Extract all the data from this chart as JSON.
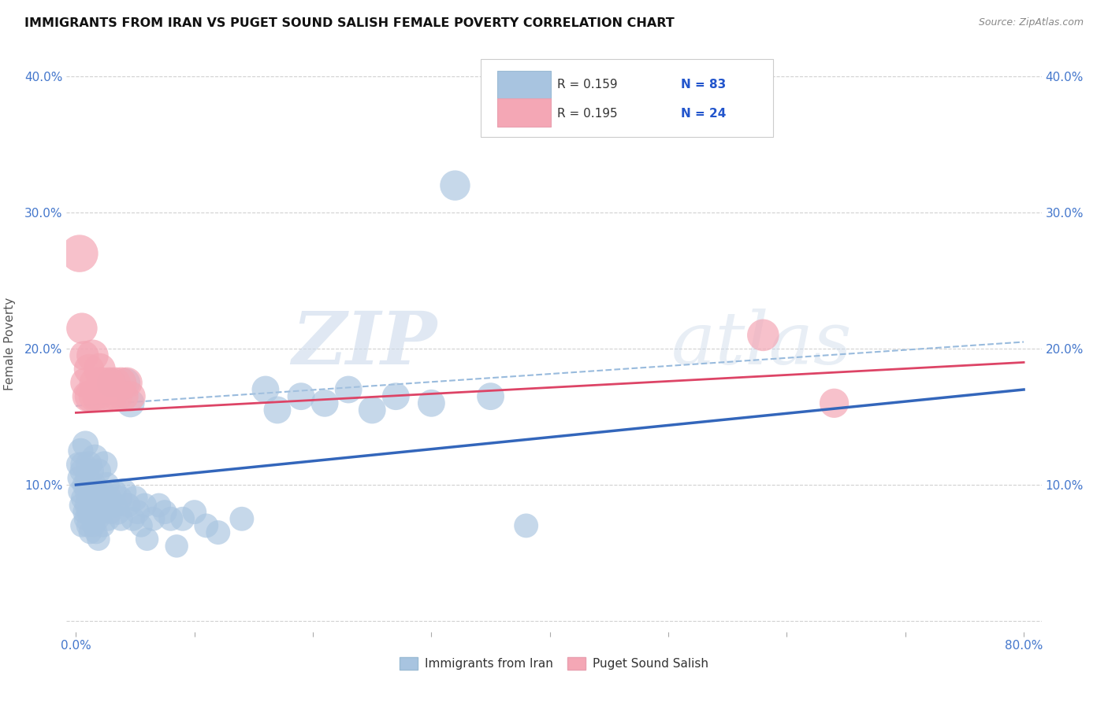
{
  "title": "IMMIGRANTS FROM IRAN VS PUGET SOUND SALISH FEMALE POVERTY CORRELATION CHART",
  "source": "Source: ZipAtlas.com",
  "xlabel_blue": "Immigrants from Iran",
  "xlabel_pink": "Puget Sound Salish",
  "ylabel": "Female Poverty",
  "xlim": [
    0.0,
    0.8
  ],
  "ylim": [
    0.0,
    0.4
  ],
  "legend_r_blue": "R = 0.159",
  "legend_n_blue": "N = 83",
  "legend_r_pink": "R = 0.195",
  "legend_n_pink": "N = 24",
  "blue_color": "#a8c4e0",
  "pink_color": "#f4a7b5",
  "blue_line_color": "#3366bb",
  "pink_line_color": "#dd4466",
  "dashed_line_color": "#99bbdd",
  "watermark_zip": "ZIP",
  "watermark_atlas": "atlas",
  "blue_scatter_x": [
    0.002,
    0.003,
    0.003,
    0.004,
    0.004,
    0.005,
    0.005,
    0.006,
    0.006,
    0.007,
    0.007,
    0.008,
    0.008,
    0.009,
    0.009,
    0.01,
    0.01,
    0.011,
    0.011,
    0.012,
    0.012,
    0.013,
    0.013,
    0.014,
    0.014,
    0.015,
    0.015,
    0.016,
    0.016,
    0.017,
    0.017,
    0.018,
    0.018,
    0.019,
    0.019,
    0.02,
    0.02,
    0.021,
    0.022,
    0.023,
    0.024,
    0.025,
    0.026,
    0.027,
    0.028,
    0.029,
    0.03,
    0.032,
    0.033,
    0.035,
    0.037,
    0.038,
    0.04,
    0.042,
    0.044,
    0.046,
    0.048,
    0.05,
    0.052,
    0.055,
    0.058,
    0.06,
    0.065,
    0.07,
    0.075,
    0.08,
    0.085,
    0.09,
    0.1,
    0.11,
    0.12,
    0.14,
    0.16,
    0.17,
    0.19,
    0.21,
    0.23,
    0.25,
    0.27,
    0.3,
    0.32,
    0.35,
    0.38
  ],
  "blue_scatter_y": [
    0.115,
    0.095,
    0.105,
    0.085,
    0.125,
    0.07,
    0.11,
    0.09,
    0.115,
    0.08,
    0.1,
    0.075,
    0.13,
    0.085,
    0.095,
    0.07,
    0.105,
    0.08,
    0.115,
    0.065,
    0.095,
    0.085,
    0.11,
    0.075,
    0.09,
    0.07,
    0.1,
    0.08,
    0.12,
    0.065,
    0.085,
    0.095,
    0.075,
    0.11,
    0.06,
    0.09,
    0.085,
    0.08,
    0.095,
    0.07,
    0.115,
    0.085,
    0.1,
    0.075,
    0.09,
    0.08,
    0.175,
    0.095,
    0.085,
    0.08,
    0.09,
    0.075,
    0.095,
    0.175,
    0.085,
    0.16,
    0.075,
    0.09,
    0.08,
    0.07,
    0.085,
    0.06,
    0.075,
    0.085,
    0.08,
    0.075,
    0.055,
    0.075,
    0.08,
    0.07,
    0.065,
    0.075,
    0.17,
    0.155,
    0.165,
    0.16,
    0.17,
    0.155,
    0.165,
    0.16,
    0.32,
    0.165,
    0.07
  ],
  "blue_scatter_s": [
    55,
    50,
    55,
    50,
    60,
    50,
    55,
    55,
    60,
    50,
    55,
    50,
    65,
    55,
    55,
    50,
    60,
    55,
    65,
    50,
    55,
    55,
    60,
    50,
    55,
    50,
    60,
    55,
    65,
    50,
    55,
    55,
    55,
    60,
    50,
    55,
    55,
    55,
    60,
    50,
    65,
    55,
    60,
    55,
    60,
    55,
    80,
    60,
    55,
    60,
    60,
    55,
    65,
    80,
    55,
    75,
    55,
    60,
    55,
    50,
    55,
    50,
    55,
    55,
    55,
    55,
    50,
    55,
    55,
    55,
    55,
    55,
    70,
    70,
    70,
    70,
    70,
    70,
    70,
    70,
    85,
    70,
    55
  ],
  "pink_scatter_x": [
    0.003,
    0.005,
    0.007,
    0.008,
    0.01,
    0.011,
    0.012,
    0.014,
    0.015,
    0.016,
    0.018,
    0.02,
    0.022,
    0.025,
    0.028,
    0.03,
    0.033,
    0.035,
    0.038,
    0.04,
    0.043,
    0.046,
    0.58,
    0.64
  ],
  "pink_scatter_y": [
    0.27,
    0.215,
    0.195,
    0.175,
    0.165,
    0.185,
    0.165,
    0.195,
    0.165,
    0.175,
    0.165,
    0.185,
    0.175,
    0.165,
    0.175,
    0.165,
    0.175,
    0.165,
    0.175,
    0.165,
    0.175,
    0.165,
    0.21,
    0.16
  ],
  "pink_scatter_s": [
    130,
    90,
    80,
    85,
    90,
    85,
    90,
    95,
    85,
    90,
    85,
    95,
    90,
    85,
    90,
    85,
    90,
    85,
    90,
    85,
    90,
    85,
    95,
    80
  ],
  "blue_line_x0": 0.0,
  "blue_line_x1": 0.8,
  "blue_line_y0": 0.1,
  "blue_line_y1": 0.17,
  "pink_line_x0": 0.0,
  "pink_line_x1": 0.8,
  "pink_line_y0": 0.153,
  "pink_line_y1": 0.19,
  "dash_line_x0": 0.0,
  "dash_line_x1": 0.8,
  "dash_line_y0": 0.158,
  "dash_line_y1": 0.205
}
